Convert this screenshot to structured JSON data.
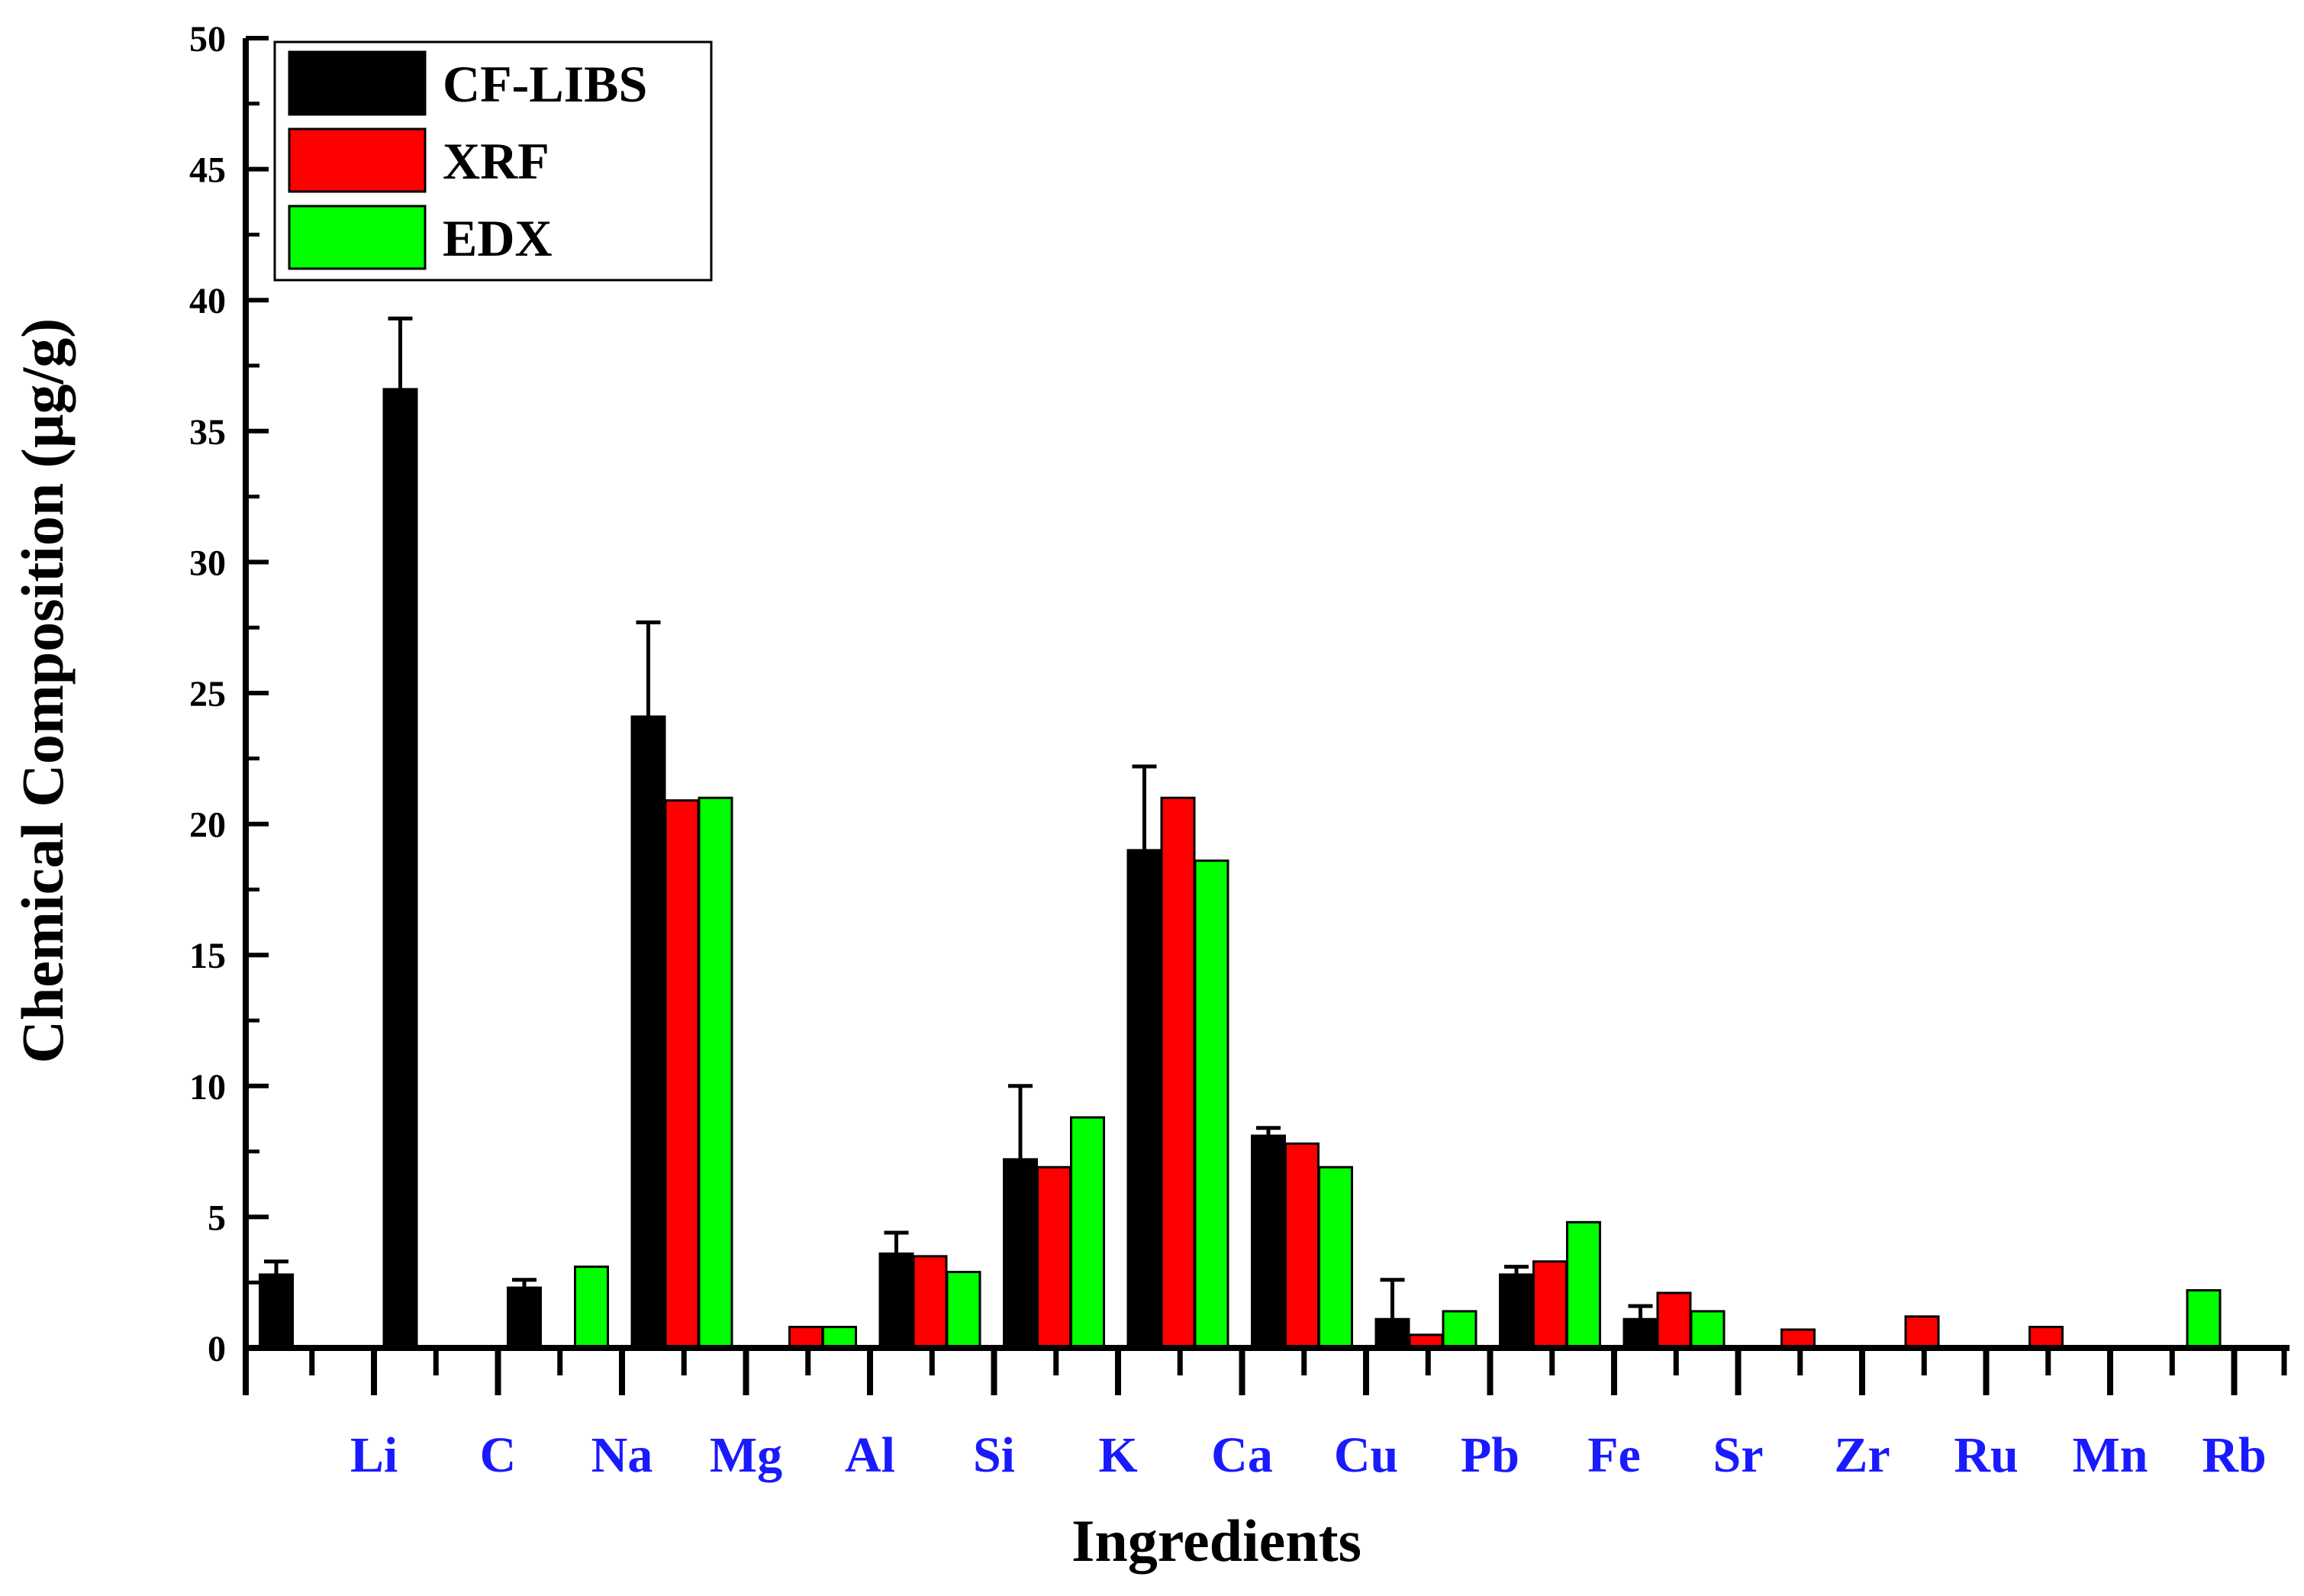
{
  "chart_data": {
    "type": "bar",
    "title": "",
    "xlabel": "Ingredients",
    "ylabel": "Chemical Composition (µg/g)",
    "ylim": [
      0,
      50
    ],
    "yticks": [
      0,
      5,
      10,
      15,
      20,
      25,
      30,
      35,
      40,
      45,
      50
    ],
    "ytick_labels": [
      "0",
      "5",
      "10",
      "15",
      "20",
      "25",
      "30",
      "35",
      "40",
      "45",
      "50"
    ],
    "grid": false,
    "legend_position": "top-left",
    "categories": [
      "Li",
      "C",
      "Na",
      "Mg",
      "Al",
      "Si",
      "K",
      "Ca",
      "Cu",
      "Pb",
      "Fe",
      "Sr",
      "Zr",
      "Ru",
      "Mn",
      "Rb"
    ],
    "series": [
      {
        "name": "CF-LIBS",
        "color": "#000000",
        "values": [
          2.8,
          36.6,
          2.3,
          24.1,
          null,
          3.6,
          7.2,
          19.0,
          8.1,
          1.1,
          2.8,
          1.1,
          null,
          null,
          null,
          null
        ],
        "errors": [
          0.5,
          2.7,
          0.3,
          3.6,
          null,
          0.8,
          2.8,
          3.2,
          0.3,
          1.5,
          0.3,
          0.5,
          null,
          null,
          null,
          null
        ]
      },
      {
        "name": "XRF",
        "color": "#ff0000",
        "values": [
          null,
          null,
          null,
          20.9,
          0.8,
          3.5,
          6.9,
          21.0,
          7.8,
          0.5,
          3.3,
          2.1,
          0.7,
          1.2,
          0.8,
          null
        ]
      },
      {
        "name": "EDX",
        "color": "#00ff00",
        "values": [
          null,
          null,
          3.1,
          21.0,
          0.8,
          2.9,
          8.8,
          18.6,
          6.9,
          1.4,
          4.8,
          1.4,
          null,
          null,
          null,
          2.2
        ]
      }
    ]
  }
}
